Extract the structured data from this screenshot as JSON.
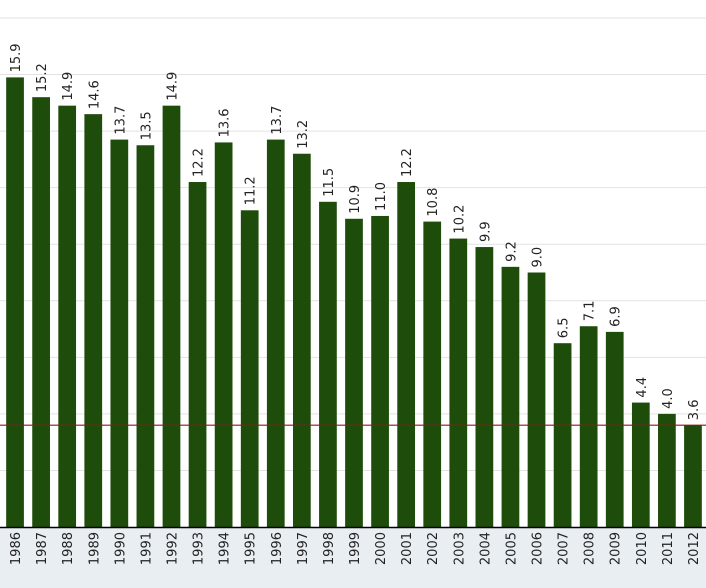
{
  "chart_data": {
    "type": "bar",
    "categories": [
      "1986",
      "1987",
      "1988",
      "1989",
      "1990",
      "1991",
      "1992",
      "1993",
      "1994",
      "1995",
      "1996",
      "1997",
      "1998",
      "1999",
      "2000",
      "2001",
      "2002",
      "2003",
      "2004",
      "2005",
      "2006",
      "2007",
      "2008",
      "2009",
      "2010",
      "2011",
      "2012"
    ],
    "values": [
      15.9,
      15.2,
      14.9,
      14.6,
      13.7,
      13.5,
      14.9,
      12.2,
      13.6,
      11.2,
      13.7,
      13.2,
      11.5,
      10.9,
      11.0,
      12.2,
      10.8,
      10.2,
      9.9,
      9.2,
      9.0,
      6.5,
      7.1,
      6.9,
      4.4,
      4.0,
      3.6
    ],
    "value_labels": [
      "15.9",
      "15.2",
      "14.9",
      "14.6",
      "13.7",
      "13.5",
      "14.9",
      "12.2",
      "13.6",
      "11.2",
      "13.7",
      "13.2",
      "11.5",
      "10.9",
      "11.0",
      "12.2",
      "10.8",
      "10.2",
      "9.9",
      "9.2",
      "9.0",
      "6.5",
      "7.1",
      "6.9",
      "4.4",
      "4.0",
      "3.6"
    ],
    "color": "#1e4d0b",
    "ylim": [
      0,
      18
    ],
    "yticks": [
      2,
      4,
      6,
      8,
      10,
      12,
      14,
      16,
      18
    ],
    "grid": true,
    "reference_line": {
      "value": 3.6,
      "color": "#8b1a1a"
    }
  }
}
